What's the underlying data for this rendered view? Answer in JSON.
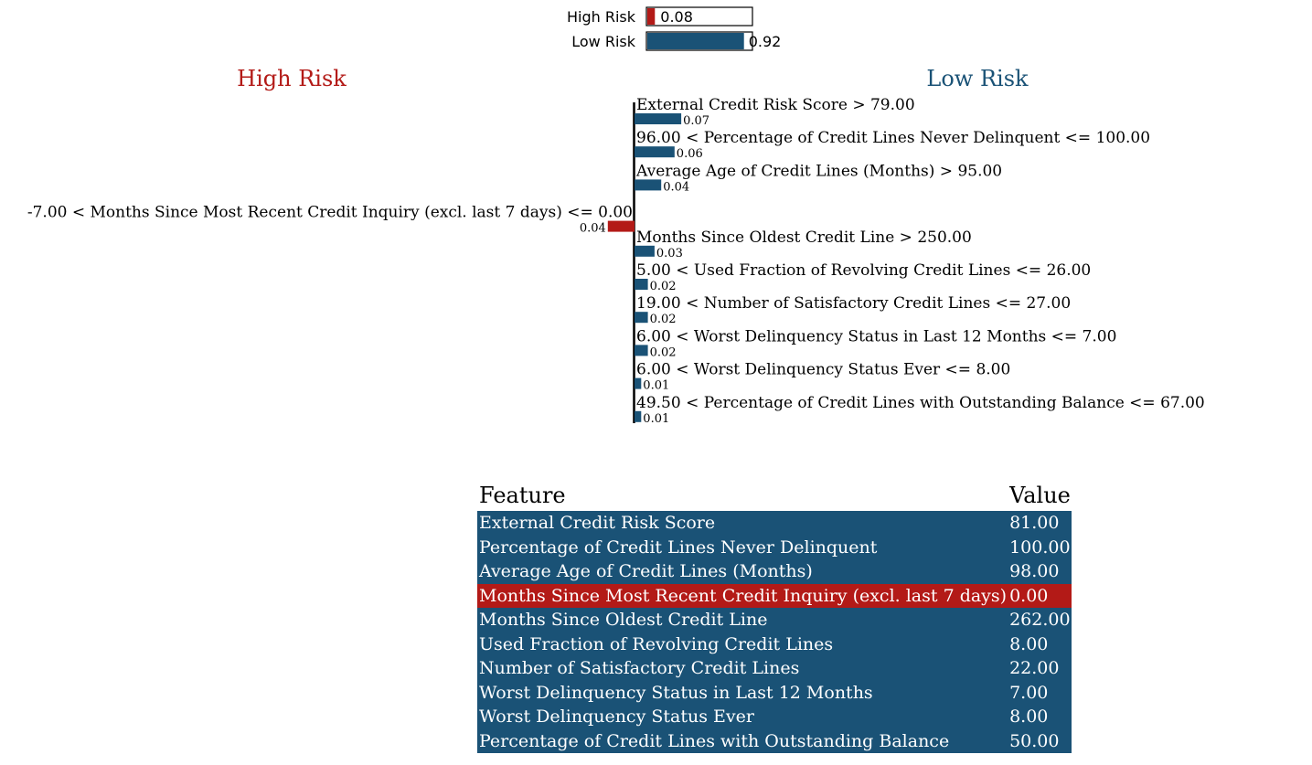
{
  "colors": {
    "high": "#b31a17",
    "low": "#1a5276"
  },
  "prediction": {
    "items": [
      {
        "label": "High Risk",
        "value": 0.08,
        "value_text": "0.08",
        "color": "#b31a17"
      },
      {
        "label": "Low Risk",
        "value": 0.92,
        "value_text": "0.92",
        "color": "#1a5276"
      }
    ]
  },
  "headers": {
    "left": "High Risk",
    "right": "Low Risk"
  },
  "chart_data": {
    "type": "bar",
    "orientation": "horizontal",
    "categories": [
      "External Credit Risk Score > 79.00",
      "96.00 < Percentage of Credit Lines Never Delinquent <= 100.00",
      "Average Age of Credit Lines (Months) > 95.00",
      "-7.00 < Months Since Most Recent Credit Inquiry (excl. last 7 days) <= 0.00",
      "Months Since Oldest Credit Line > 250.00",
      "5.00 < Used Fraction of Revolving Credit Lines <= 26.00",
      "19.00 < Number of Satisfactory Credit Lines <= 27.00",
      "6.00 < Worst Delinquency Status in Last 12 Months <= 7.00",
      "6.00 < Worst Delinquency Status Ever <= 8.00",
      "49.50 < Percentage of Credit Lines with Outstanding Balance <= 67.00"
    ],
    "values": [
      0.07,
      0.06,
      0.04,
      -0.04,
      0.03,
      0.02,
      0.02,
      0.02,
      0.01,
      0.01
    ],
    "value_labels": [
      "0.07",
      "0.06",
      "0.04",
      "0.04",
      "0.03",
      "0.02",
      "0.02",
      "0.02",
      "0.01",
      "0.01"
    ],
    "sides": [
      "Low Risk",
      "Low Risk",
      "Low Risk",
      "High Risk",
      "Low Risk",
      "Low Risk",
      "Low Risk",
      "Low Risk",
      "Low Risk",
      "Low Risk"
    ]
  },
  "table": {
    "columns": [
      "Feature",
      "Value"
    ],
    "rows": [
      {
        "feature": "External Credit Risk Score",
        "value": "81.00",
        "side": "low"
      },
      {
        "feature": "Percentage of Credit Lines Never Delinquent",
        "value": "100.00",
        "side": "low"
      },
      {
        "feature": "Average Age of Credit Lines (Months)",
        "value": "98.00",
        "side": "low"
      },
      {
        "feature": "Months Since Most Recent Credit Inquiry (excl. last 7 days)",
        "value": "0.00",
        "side": "high"
      },
      {
        "feature": "Months Since Oldest Credit Line",
        "value": "262.00",
        "side": "low"
      },
      {
        "feature": "Used Fraction of Revolving Credit Lines",
        "value": "8.00",
        "side": "low"
      },
      {
        "feature": "Number of Satisfactory Credit Lines",
        "value": "22.00",
        "side": "low"
      },
      {
        "feature": "Worst Delinquency Status in Last 12 Months",
        "value": "7.00",
        "side": "low"
      },
      {
        "feature": "Worst Delinquency Status Ever",
        "value": "8.00",
        "side": "low"
      },
      {
        "feature": "Percentage of Credit Lines with Outstanding Balance",
        "value": "50.00",
        "side": "low"
      }
    ]
  }
}
